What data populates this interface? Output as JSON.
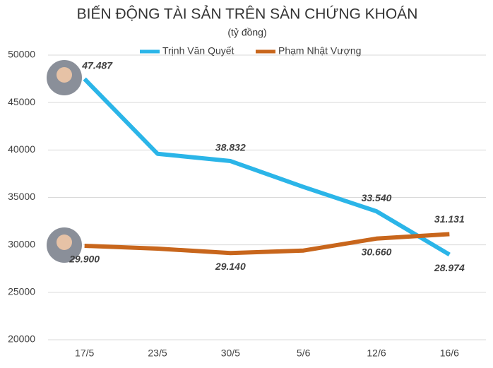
{
  "chart_data": {
    "type": "line",
    "title": "BIẾN ĐỘNG TÀI SẢN TRÊN SÀN CHỨNG KHOÁN",
    "subtitle": "(tỷ đồng)",
    "categories": [
      "17/5",
      "23/5",
      "30/5",
      "5/6",
      "12/6",
      "16/6"
    ],
    "series": [
      {
        "name": "Trịnh Văn Quyết",
        "color": "#2bb5e8",
        "label_color": "#4472c4",
        "values": [
          47487,
          39600,
          38832,
          36100,
          33540,
          28974
        ],
        "value_labels": [
          "47.487",
          null,
          "38.832",
          null,
          "33.540",
          "28.974"
        ]
      },
      {
        "name": "Phạm Nhật Vượng",
        "color": "#c8661c",
        "label_color": "#c8661c",
        "values": [
          29900,
          29600,
          29140,
          29400,
          30660,
          31131
        ],
        "value_labels": [
          "29.900",
          null,
          "29.140",
          null,
          "30.660",
          "31.131"
        ]
      }
    ],
    "ylim": [
      20000,
      50000
    ],
    "yticks": [
      20000,
      25000,
      30000,
      35000,
      40000,
      45000,
      50000
    ],
    "grid": true
  }
}
